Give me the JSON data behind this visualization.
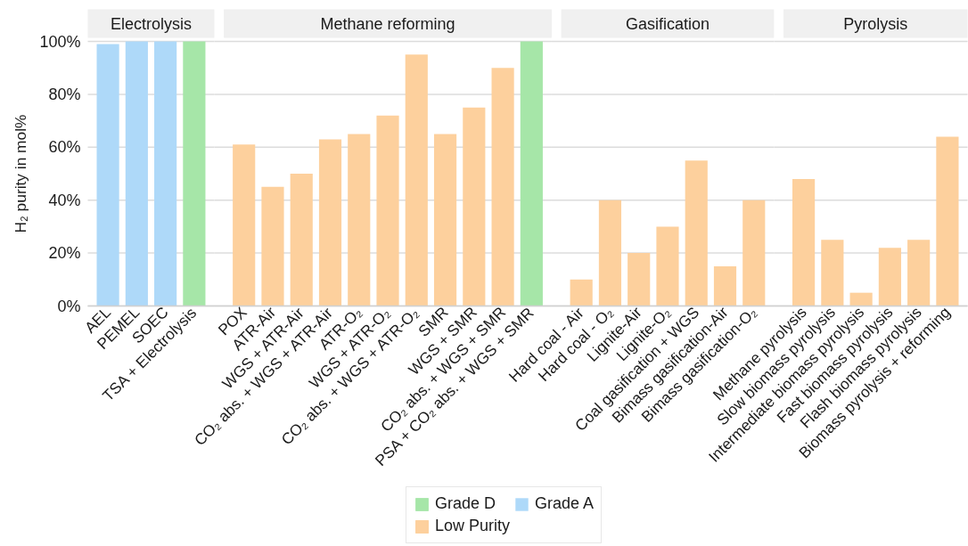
{
  "chart_data": [
    {
      "type": "bar",
      "title": "Electrolysis",
      "ylabel": "H₂ purity in mol%",
      "grid": "y",
      "ylim": [
        0,
        100
      ],
      "legend": "bottom",
      "yticks": [
        {
          "value": 0,
          "label": "0%"
        },
        {
          "value": 20,
          "label": "20%"
        },
        {
          "value": 40,
          "label": "40%"
        },
        {
          "value": 60,
          "label": "60%"
        },
        {
          "value": 80,
          "label": "80%"
        },
        {
          "value": 100,
          "label": "100%"
        }
      ],
      "categories": [
        "AEL",
        "PEMEL",
        "SOEC",
        "TSA + Electrolysis"
      ],
      "series": [
        {
          "name": "Grade D",
          "color": "#a6e6a8",
          "values": [
            null,
            null,
            null,
            100
          ]
        },
        {
          "name": "Grade A",
          "color": "#aed9f9",
          "values": [
            99,
            100,
            100,
            null
          ]
        }
      ]
    },
    {
      "type": "bar",
      "title": "Methane reforming",
      "grid": "y",
      "ylim": [
        0,
        100
      ],
      "tick_labels": "x",
      "legend": "bottom",
      "categories": [
        "POX",
        "ATR-Air",
        "WGS + ATR-Air",
        "CO₂ abs. + WGS + ATR-Air",
        "ATR-O₂",
        "WGS + ATR-O₂",
        "CO₂ abs. + WGS + ATR-O₂",
        "SMR",
        "WGS + SMR",
        "CO₂ abs. + WGS + SMR",
        "PSA + CO₂ abs. + WGS + SMR"
      ],
      "series": [
        {
          "name": "Grade D",
          "color": "#a6e6a8",
          "values": [
            null,
            null,
            null,
            null,
            null,
            null,
            null,
            null,
            null,
            null,
            100
          ]
        },
        {
          "name": "Low Purity",
          "color": "#fdd09d",
          "values": [
            61,
            45,
            50,
            63,
            65,
            72,
            95,
            65,
            75,
            90,
            null
          ]
        }
      ]
    },
    {
      "type": "bar",
      "title": "Gasification",
      "grid": "y",
      "ylim": [
        0,
        100
      ],
      "tick_labels": "x",
      "legend": "bottom",
      "categories": [
        "Hard coal - Air",
        "Hard coal - O₂",
        "Lignite-Air",
        "Lignite-O₂",
        "Coal gasification + WGS",
        "Bimass gasification-Air",
        "Bimass gasification-O₂"
      ],
      "series": [
        {
          "name": "Low Purity",
          "color": "#fdd09d",
          "values": [
            10,
            40,
            20,
            30,
            55,
            15,
            40
          ]
        }
      ]
    },
    {
      "type": "bar",
      "title": "Pyrolysis",
      "grid": "y",
      "ylim": [
        0,
        100
      ],
      "tick_labels": "x",
      "legend": "bottom",
      "categories": [
        "Methane pyrolysis",
        "Slow biomass pyrolysis",
        "Intermediate biomass pyrolysis",
        "Fast biomass pyrolysis",
        "Flash biomass pyrolysis",
        "Biomass pyrolysis + reforming"
      ],
      "series": [
        {
          "name": "Low Purity",
          "color": "#fdd09d",
          "values": [
            48,
            25,
            5,
            22,
            25,
            64
          ]
        }
      ]
    }
  ]
}
